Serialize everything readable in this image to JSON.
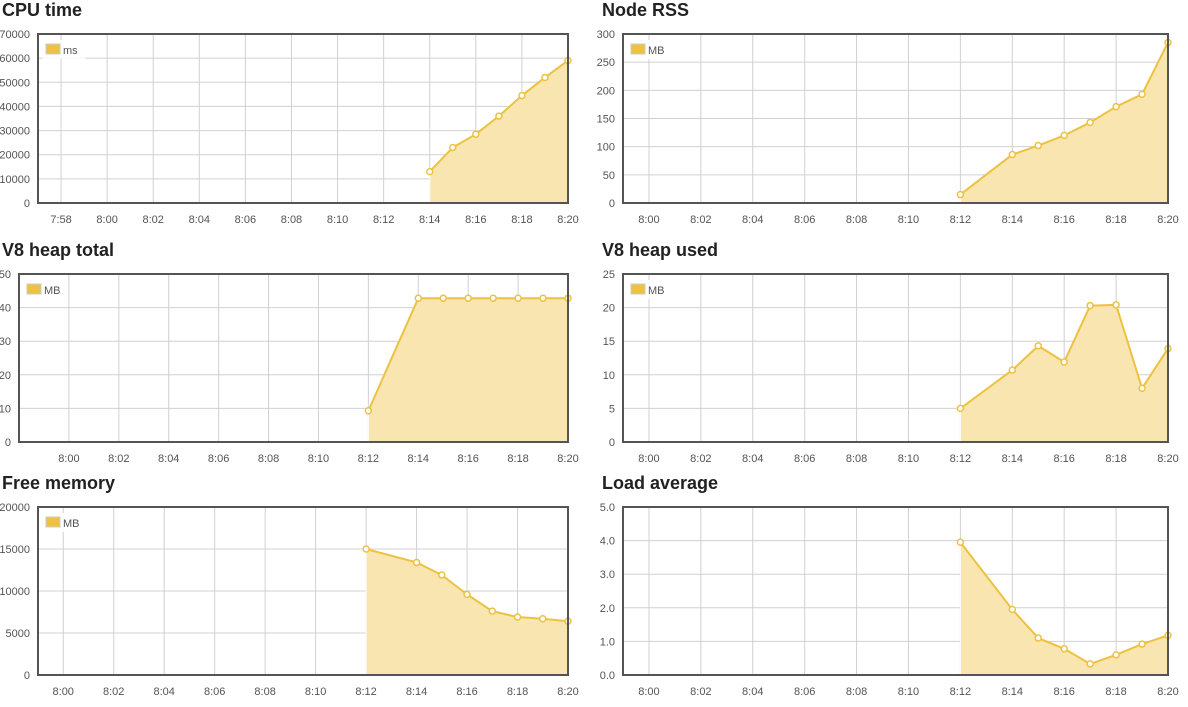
{
  "colors": {
    "series": "#edc240",
    "fill": "#f8e5b0",
    "grid": "#d0d0d0",
    "frame": "#545454"
  },
  "chart_data": [
    {
      "id": "cpu",
      "type": "area",
      "title": "CPU time",
      "legend": "ms",
      "legend_position": "top-left",
      "grid": true,
      "xlim": [
        "7:57",
        "8:20"
      ],
      "xticks": [
        "7:58",
        "8:00",
        "8:02",
        "8:04",
        "8:06",
        "8:08",
        "8:10",
        "8:12",
        "8:14",
        "8:16",
        "8:18",
        "8:20"
      ],
      "ylim": [
        0,
        70000
      ],
      "yticks": [
        0,
        10000,
        20000,
        30000,
        40000,
        50000,
        60000,
        70000
      ],
      "ytick_labels": [
        "0",
        "10000",
        "20000",
        "30000",
        "40000",
        "50000",
        "60000",
        "70000"
      ],
      "x": [
        "8:14",
        "8:15",
        "8:16",
        "8:17",
        "8:18",
        "8:19",
        "8:20"
      ],
      "y": [
        13000,
        23000,
        28500,
        36000,
        44500,
        52000,
        59000
      ]
    },
    {
      "id": "rss",
      "type": "area",
      "title": "Node RSS",
      "legend": "MB",
      "legend_position": "top-left",
      "grid": true,
      "xlim": [
        "7:59",
        "8:20"
      ],
      "xticks": [
        "8:00",
        "8:02",
        "8:04",
        "8:06",
        "8:08",
        "8:10",
        "8:12",
        "8:14",
        "8:16",
        "8:18",
        "8:20"
      ],
      "ylim": [
        0,
        300
      ],
      "yticks": [
        0,
        50,
        100,
        150,
        200,
        250,
        300
      ],
      "ytick_labels": [
        "0",
        "50",
        "100",
        "150",
        "200",
        "250",
        "300"
      ],
      "x": [
        "8:12",
        "8:14",
        "8:15",
        "8:16",
        "8:17",
        "8:18",
        "8:19",
        "8:20"
      ],
      "y": [
        15,
        86,
        102,
        120,
        143,
        171,
        193,
        285
      ]
    },
    {
      "id": "heaptotal",
      "type": "area",
      "title": "V8 heap total",
      "legend": "MB",
      "legend_position": "top-left",
      "grid": true,
      "xlim": [
        "7:58",
        "8:20"
      ],
      "xticks": [
        "8:00",
        "8:02",
        "8:04",
        "8:06",
        "8:08",
        "8:10",
        "8:12",
        "8:14",
        "8:16",
        "8:18",
        "8:20"
      ],
      "ylim": [
        0,
        50
      ],
      "yticks": [
        0,
        10,
        20,
        30,
        40,
        50
      ],
      "ytick_labels": [
        "0",
        "10",
        "20",
        "30",
        "40",
        "50"
      ],
      "x": [
        "8:12",
        "8:14",
        "8:15",
        "8:16",
        "8:17",
        "8:18",
        "8:19",
        "8:20"
      ],
      "y": [
        9.3,
        42.8,
        42.8,
        42.8,
        42.8,
        42.8,
        42.8,
        42.8
      ]
    },
    {
      "id": "heapused",
      "type": "area",
      "title": "V8 heap used",
      "legend": "MB",
      "legend_position": "top-left",
      "grid": true,
      "xlim": [
        "7:59",
        "8:20"
      ],
      "xticks": [
        "8:00",
        "8:02",
        "8:04",
        "8:06",
        "8:08",
        "8:10",
        "8:12",
        "8:14",
        "8:16",
        "8:18",
        "8:20"
      ],
      "ylim": [
        0,
        25
      ],
      "yticks": [
        0,
        5,
        10,
        15,
        20,
        25
      ],
      "ytick_labels": [
        "0",
        "5",
        "10",
        "15",
        "20",
        "25"
      ],
      "x": [
        "8:12",
        "8:14",
        "8:15",
        "8:16",
        "8:17",
        "8:18",
        "8:19",
        "8:20"
      ],
      "y": [
        5.0,
        10.7,
        14.3,
        11.9,
        20.3,
        20.4,
        8.0,
        13.9
      ]
    },
    {
      "id": "freemem",
      "type": "area",
      "title": "Free memory",
      "legend": "MB",
      "legend_position": "top-left",
      "grid": true,
      "xlim": [
        "7:59",
        "8:20"
      ],
      "xticks": [
        "8:00",
        "8:02",
        "8:04",
        "8:06",
        "8:08",
        "8:10",
        "8:12",
        "8:14",
        "8:16",
        "8:18",
        "8:20"
      ],
      "ylim": [
        0,
        20000
      ],
      "yticks": [
        0,
        5000,
        10000,
        15000,
        20000
      ],
      "ytick_labels": [
        "0",
        "5000",
        "10000",
        "15000",
        "20000"
      ],
      "x": [
        "8:12",
        "8:14",
        "8:15",
        "8:16",
        "8:17",
        "8:18",
        "8:19",
        "8:20"
      ],
      "y": [
        15000,
        13400,
        11900,
        9600,
        7600,
        6900,
        6700,
        6400
      ]
    },
    {
      "id": "load",
      "type": "area",
      "title": "Load average",
      "legend": "",
      "legend_position": "",
      "grid": true,
      "xlim": [
        "7:59",
        "8:20"
      ],
      "xticks": [
        "8:00",
        "8:02",
        "8:04",
        "8:06",
        "8:08",
        "8:10",
        "8:12",
        "8:14",
        "8:16",
        "8:18",
        "8:20"
      ],
      "ylim": [
        0,
        5
      ],
      "yticks": [
        0,
        1,
        2,
        3,
        4,
        5
      ],
      "ytick_labels": [
        "0.0",
        "1.0",
        "2.0",
        "3.0",
        "4.0",
        "5.0"
      ],
      "x": [
        "8:12",
        "8:14",
        "8:15",
        "8:16",
        "8:17",
        "8:18",
        "8:19",
        "8:20"
      ],
      "y": [
        3.95,
        1.95,
        1.1,
        0.78,
        0.33,
        0.6,
        0.92,
        1.18
      ]
    }
  ]
}
